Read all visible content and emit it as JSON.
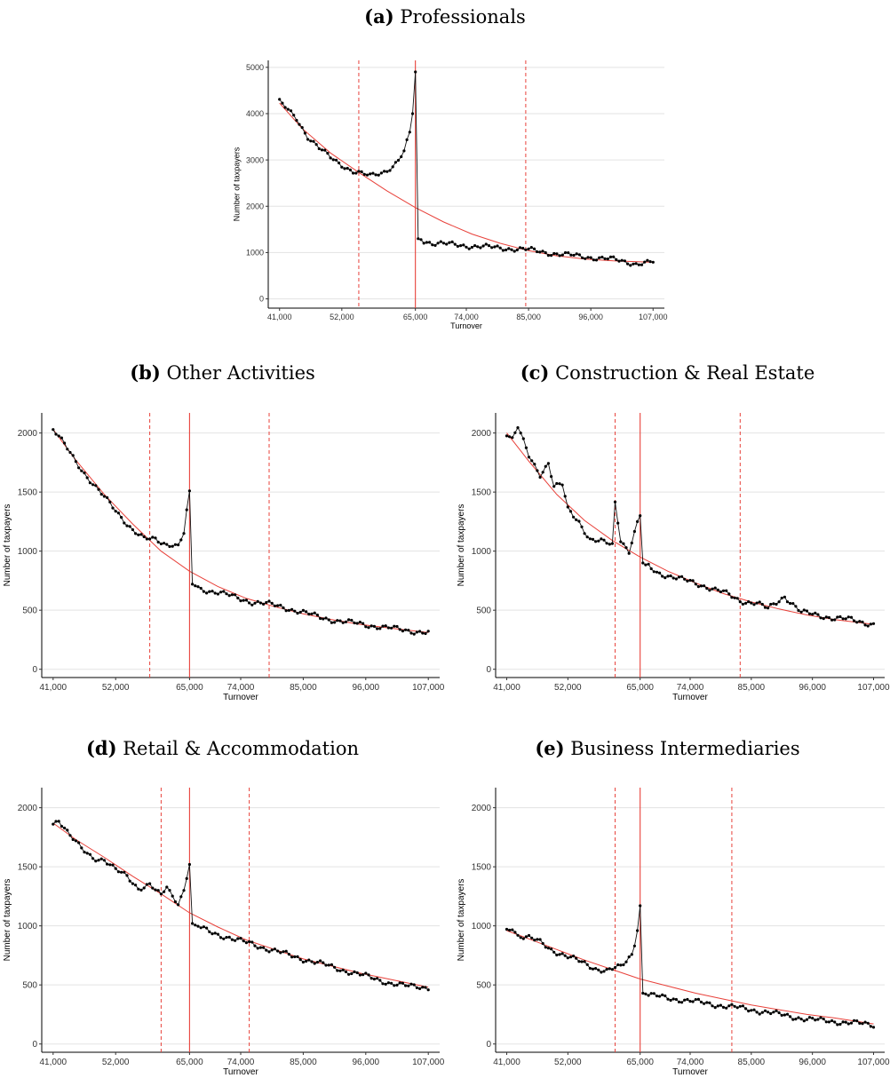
{
  "chart_data": [
    {
      "type": "line",
      "tag": "(a)",
      "title": "Professionals",
      "xlabel": "Turnover",
      "ylabel": "Number of taxpayers",
      "xlim": [
        39000,
        109000
      ],
      "ylim": [
        -200,
        5150
      ],
      "xticks": [
        41000,
        52000,
        65000,
        74000,
        85000,
        96000,
        107000
      ],
      "xtick_labels": [
        "41,000",
        "52,000",
        "65,000",
        "74,000",
        "85,000",
        "96,000",
        "107,000"
      ],
      "yticks": [
        0,
        1000,
        2000,
        3000,
        4000,
        5000
      ],
      "ytick_labels": [
        "0",
        "1000",
        "2000",
        "3000",
        "4000",
        "5000"
      ],
      "grid": "horizontal",
      "threshold": 65000,
      "window_lines": [
        55000,
        84500
      ],
      "observed": {
        "x": [
          41000,
          44000,
          46000,
          48000,
          50000,
          52000,
          54000,
          56000,
          57000,
          58000,
          59000,
          60000,
          61000,
          62000,
          63000,
          64000,
          64500,
          65000,
          65500,
          68000,
          72000,
          76000,
          80000,
          85000,
          90000,
          95000,
          100000,
          104000,
          107000
        ],
        "y": [
          4250,
          3900,
          3500,
          3250,
          3050,
          2900,
          2750,
          2680,
          2650,
          2700,
          2720,
          2800,
          2850,
          3000,
          3150,
          3600,
          4000,
          4900,
          1300,
          1200,
          1170,
          1130,
          1100,
          1060,
          970,
          910,
          850,
          760,
          790
        ]
      },
      "fitted": {
        "x": [
          41000,
          45000,
          50000,
          55000,
          60000,
          65000,
          70000,
          75000,
          80000,
          85000,
          90000,
          95000,
          100000,
          107000
        ],
        "y": [
          4230,
          3680,
          3150,
          2730,
          2330,
          1970,
          1660,
          1400,
          1200,
          1040,
          930,
          860,
          820,
          790
        ]
      }
    },
    {
      "type": "line",
      "tag": "(b)",
      "title": "Other Activities",
      "xlabel": "Turnover",
      "ylabel": "Number of taxpayers",
      "xlim": [
        39000,
        109000
      ],
      "ylim": [
        -70,
        2170
      ],
      "xticks": [
        41000,
        52000,
        65000,
        74000,
        85000,
        96000,
        107000
      ],
      "xtick_labels": [
        "41,000",
        "52,000",
        "65,000",
        "74,000",
        "85,000",
        "96,000",
        "107,000"
      ],
      "yticks": [
        0,
        500,
        1000,
        1500,
        2000
      ],
      "ytick_labels": [
        "0",
        "500",
        "1000",
        "1500",
        "2000"
      ],
      "grid": "horizontal",
      "threshold": 65000,
      "window_lines": [
        58000,
        79000
      ],
      "observed": {
        "x": [
          41000,
          43000,
          45000,
          47000,
          49000,
          51000,
          53000,
          55000,
          57000,
          59000,
          61000,
          62000,
          63000,
          64000,
          64500,
          65000,
          65500,
          67000,
          70000,
          73000,
          76000,
          79000,
          82000,
          85000,
          88000,
          91000,
          94000,
          97000,
          100000,
          103000,
          107000
        ],
        "y": [
          2030,
          1900,
          1760,
          1630,
          1510,
          1400,
          1290,
          1180,
          1100,
          1100,
          1060,
          1060,
          1040,
          1150,
          1350,
          1510,
          720,
          680,
          650,
          610,
          570,
          550,
          520,
          480,
          440,
          410,
          390,
          370,
          350,
          330,
          310
        ]
      },
      "fitted": {
        "x": [
          41000,
          45000,
          50000,
          55000,
          60000,
          65000,
          70000,
          75000,
          80000,
          85000,
          90000,
          95000,
          100000,
          107000
        ],
        "y": [
          2030,
          1770,
          1480,
          1230,
          1000,
          830,
          700,
          600,
          530,
          470,
          420,
          380,
          350,
          310
        ]
      }
    },
    {
      "type": "line",
      "tag": "(c)",
      "title": "Construction & Real Estate",
      "xlabel": "Turnover",
      "ylabel": "Number of taxpayers",
      "xlim": [
        39000,
        109000
      ],
      "ylim": [
        -70,
        2170
      ],
      "xticks": [
        41000,
        52000,
        65000,
        74000,
        85000,
        96000,
        107000
      ],
      "xtick_labels": [
        "41,000",
        "52,000",
        "65,000",
        "74,000",
        "85,000",
        "96,000",
        "107,000"
      ],
      "yticks": [
        0,
        500,
        1000,
        1500,
        2000
      ],
      "ytick_labels": [
        "0",
        "500",
        "1000",
        "1500",
        "2000"
      ],
      "grid": "horizontal",
      "threshold": 65000,
      "window_lines": [
        60500,
        83000
      ],
      "observed": {
        "x": [
          41000,
          42000,
          43000,
          45000,
          47000,
          48500,
          49500,
          51000,
          52000,
          54000,
          56000,
          58000,
          60000,
          60500,
          61500,
          63000,
          64500,
          65000,
          65500,
          68000,
          71000,
          74000,
          77000,
          80000,
          83000,
          86000,
          88000,
          91000,
          94000,
          97000,
          100000,
          103000,
          107000
        ],
        "y": [
          2000,
          1950,
          2050,
          1800,
          1650,
          1750,
          1550,
          1560,
          1350,
          1250,
          1100,
          1080,
          1050,
          1410,
          1100,
          1000,
          1250,
          1300,
          900,
          820,
          780,
          740,
          700,
          650,
          580,
          560,
          510,
          620,
          480,
          460,
          430,
          420,
          380
        ]
      },
      "fitted": {
        "x": [
          41000,
          45000,
          50000,
          55000,
          60000,
          65000,
          70000,
          75000,
          80000,
          85000,
          90000,
          95000,
          100000,
          107000
        ],
        "y": [
          2000,
          1760,
          1480,
          1260,
          1090,
          950,
          830,
          730,
          640,
          570,
          510,
          460,
          420,
          380
        ]
      }
    },
    {
      "type": "line",
      "tag": "(d)",
      "title": "Retail & Accommodation",
      "xlabel": "Turnover",
      "ylabel": "Number of taxpayers",
      "xlim": [
        39000,
        109000
      ],
      "ylim": [
        -70,
        2170
      ],
      "xticks": [
        41000,
        52000,
        65000,
        74000,
        85000,
        96000,
        107000
      ],
      "xtick_labels": [
        "41,000",
        "52,000",
        "65,000",
        "74,000",
        "85,000",
        "96,000",
        "107,000"
      ],
      "yticks": [
        0,
        500,
        1000,
        1500,
        2000
      ],
      "ytick_labels": [
        "0",
        "500",
        "1000",
        "1500",
        "2000"
      ],
      "grid": "horizontal",
      "threshold": 65000,
      "window_lines": [
        60000,
        75500
      ],
      "observed": {
        "x": [
          41000,
          42000,
          44000,
          46000,
          48000,
          50000,
          52000,
          54000,
          56000,
          58000,
          60000,
          61000,
          62000,
          63000,
          64000,
          64500,
          65000,
          65500,
          67000,
          70000,
          73000,
          76000,
          79000,
          82000,
          85000,
          88000,
          91000,
          94000,
          97000,
          100000,
          103000,
          107000
        ],
        "y": [
          1870,
          1900,
          1760,
          1650,
          1580,
          1560,
          1470,
          1420,
          1320,
          1350,
          1250,
          1330,
          1250,
          1200,
          1300,
          1400,
          1520,
          1020,
          980,
          930,
          880,
          850,
          800,
          760,
          720,
          680,
          640,
          600,
          560,
          520,
          490,
          480
        ]
      },
      "fitted": {
        "x": [
          41000,
          45000,
          50000,
          55000,
          60000,
          65000,
          70000,
          75000,
          80000,
          85000,
          90000,
          95000,
          100000,
          107000
        ],
        "y": [
          1870,
          1730,
          1580,
          1420,
          1270,
          1110,
          990,
          880,
          800,
          720,
          660,
          600,
          550,
          480
        ]
      }
    },
    {
      "type": "line",
      "tag": "(e)",
      "title": "Business Intermediaries",
      "xlabel": "Turnover",
      "ylabel": "Number of taxpayers",
      "xlim": [
        39000,
        109000
      ],
      "ylim": [
        -70,
        2170
      ],
      "xticks": [
        41000,
        52000,
        65000,
        74000,
        85000,
        96000,
        107000
      ],
      "xtick_labels": [
        "41,000",
        "52,000",
        "65,000",
        "74,000",
        "85,000",
        "96,000",
        "107,000"
      ],
      "yticks": [
        0,
        500,
        1000,
        1500,
        2000
      ],
      "ytick_labels": [
        "0",
        "500",
        "1000",
        "1500",
        "2000"
      ],
      "grid": "horizontal",
      "threshold": 65000,
      "window_lines": [
        60500,
        81500
      ],
      "observed": {
        "x": [
          41000,
          42000,
          43000,
          45000,
          47000,
          49000,
          51000,
          53000,
          55000,
          57000,
          59000,
          60500,
          61500,
          62500,
          63500,
          64000,
          64500,
          65000,
          65500,
          67000,
          70000,
          73000,
          76000,
          79000,
          82000,
          85000,
          88000,
          91000,
          94000,
          97000,
          100000,
          103000,
          107000
        ],
        "y": [
          960,
          990,
          920,
          900,
          860,
          800,
          760,
          720,
          680,
          640,
          620,
          640,
          650,
          700,
          760,
          830,
          960,
          1170,
          430,
          410,
          390,
          370,
          350,
          330,
          310,
          290,
          270,
          240,
          220,
          200,
          190,
          180,
          160
        ]
      },
      "fitted": {
        "x": [
          41000,
          45000,
          50000,
          55000,
          60000,
          65000,
          70000,
          75000,
          80000,
          85000,
          90000,
          95000,
          100000,
          107000
        ],
        "y": [
          960,
          890,
          800,
          710,
          630,
          550,
          490,
          430,
          380,
          330,
          290,
          250,
          220,
          170
        ]
      }
    }
  ]
}
